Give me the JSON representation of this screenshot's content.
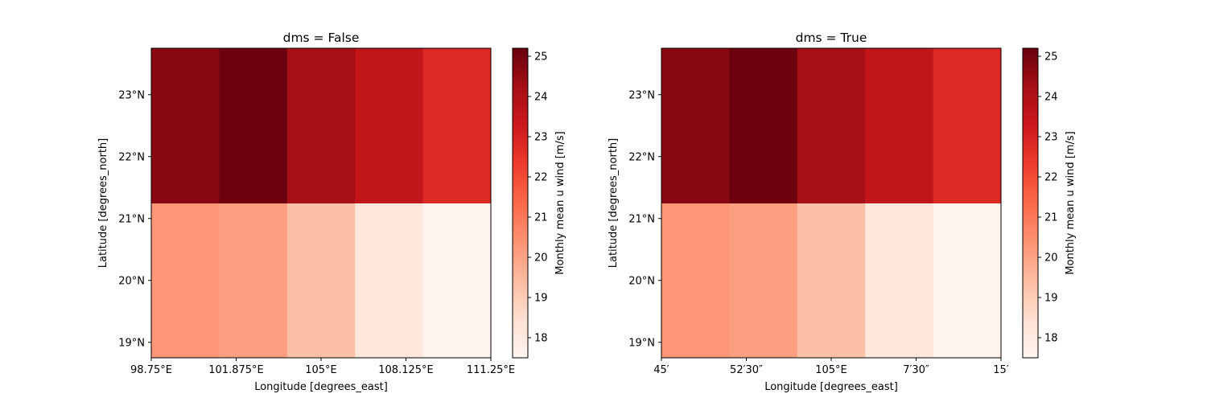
{
  "chart_data": [
    {
      "type": "heatmap",
      "title": "dms = False",
      "xlabel": "Longitude [degrees_east]",
      "ylabel": "Latitude [degrees_north]",
      "xlim": [
        98.75,
        111.25
      ],
      "ylim": [
        18.75,
        23.75
      ],
      "x_ticks": [
        98.75,
        101.875,
        105,
        108.125,
        111.25
      ],
      "x_tick_labels": [
        "98.75°E",
        "101.875°E",
        "105°E",
        "108.125°E",
        "111.25°E"
      ],
      "y_ticks": [
        19,
        20,
        21,
        22,
        23
      ],
      "y_tick_labels": [
        "19°N",
        "20°N",
        "21°N",
        "22°N",
        "23°N"
      ],
      "x_centers": [
        100,
        102.5,
        105,
        107.5,
        110
      ],
      "y_centers": [
        20,
        22.5
      ],
      "values": [
        [
          20.3,
          20.1,
          19.3,
          18.2,
          17.6
        ],
        [
          24.7,
          25.1,
          24.2,
          23.5,
          22.8
        ]
      ],
      "colorbar": {
        "label": "Monthly mean u wind [m/s]",
        "range": [
          17.5,
          25.2
        ],
        "ticks": [
          18,
          19,
          20,
          21,
          22,
          23,
          24,
          25
        ],
        "colormap": "Reds"
      }
    },
    {
      "type": "heatmap",
      "title": "dms = True",
      "xlabel": "Longitude [degrees_east]",
      "ylabel": "Latitude [degrees_north]",
      "xlim": [
        98.75,
        111.25
      ],
      "ylim": [
        18.75,
        23.75
      ],
      "x_ticks": [
        98.75,
        101.875,
        105,
        108.125,
        111.25
      ],
      "x_tick_labels": [
        "45′",
        "52′30″",
        "105°E",
        "7′30″",
        "15′"
      ],
      "y_ticks": [
        19,
        20,
        21,
        22,
        23
      ],
      "y_tick_labels": [
        "19°N",
        "20°N",
        "21°N",
        "22°N",
        "23°N"
      ],
      "x_centers": [
        100,
        102.5,
        105,
        107.5,
        110
      ],
      "y_centers": [
        20,
        22.5
      ],
      "values": [
        [
          20.3,
          20.1,
          19.3,
          18.2,
          17.6
        ],
        [
          24.7,
          25.1,
          24.2,
          23.5,
          22.8
        ]
      ],
      "colorbar": {
        "label": "Monthly mean u wind [m/s]",
        "range": [
          17.5,
          25.2
        ],
        "ticks": [
          18,
          19,
          20,
          21,
          22,
          23,
          24,
          25
        ],
        "colormap": "Reds"
      }
    }
  ]
}
